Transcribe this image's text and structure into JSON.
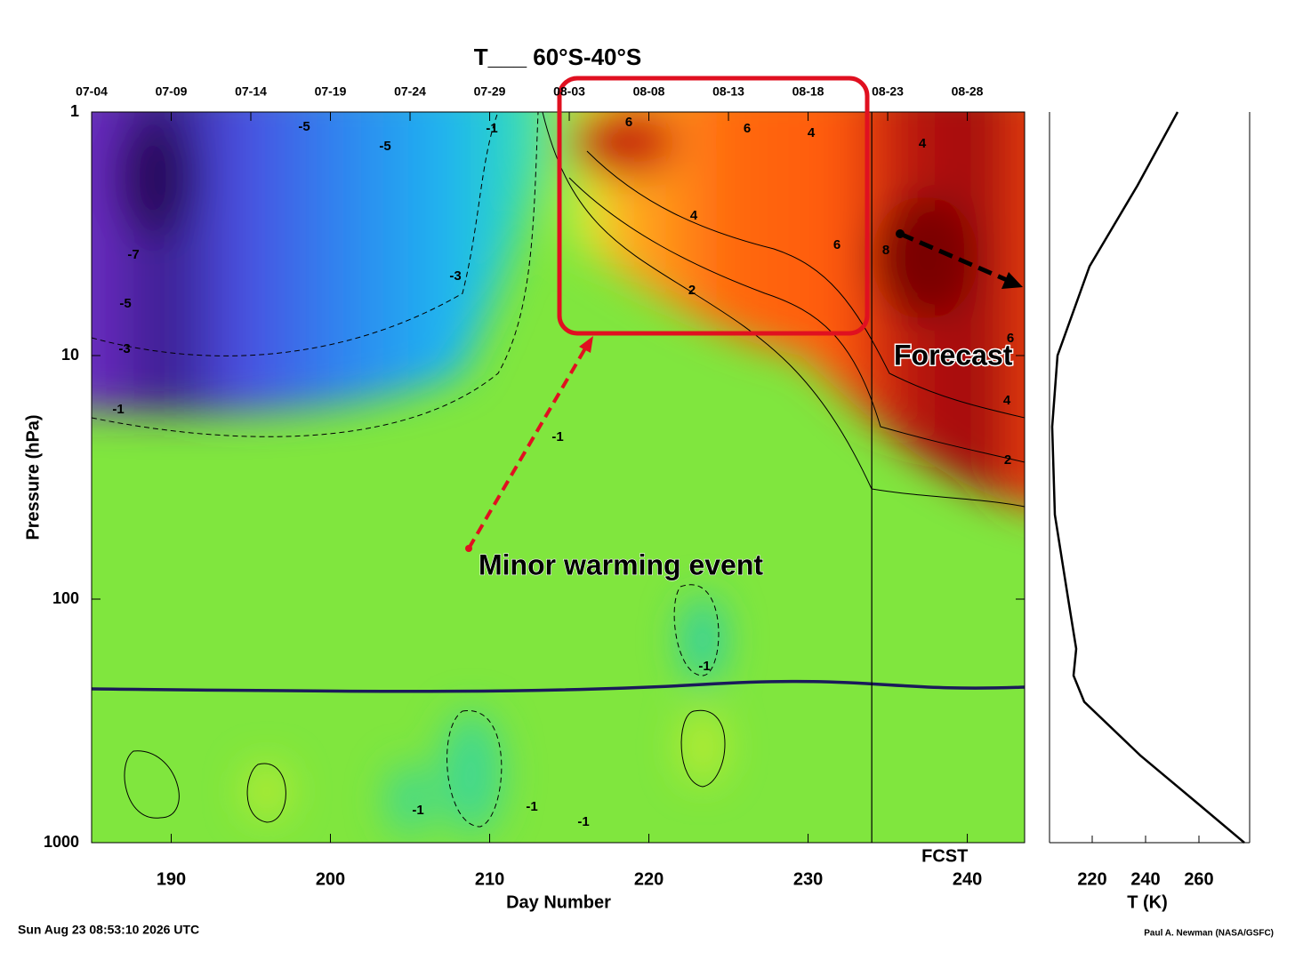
{
  "chart_data": [
    {
      "type": "contour",
      "title": "T___ 60°S-40°S",
      "xlabel": "Day Number",
      "ylabel": "Pressure (hPa)",
      "xlim": [
        185,
        243.6
      ],
      "ylim": [
        1000,
        1
      ],
      "log_y": true,
      "xticks": [
        190,
        200,
        210,
        220,
        230,
        240
      ],
      "yticks": [
        1000,
        100,
        10,
        1
      ],
      "top_xticks": [
        {
          "value": 185,
          "label": "07-04"
        },
        {
          "value": 190,
          "label": "07-09"
        },
        {
          "value": 195,
          "label": "07-14"
        },
        {
          "value": 200,
          "label": "07-19"
        },
        {
          "value": 205,
          "label": "07-24"
        },
        {
          "value": 210,
          "label": "07-29"
        },
        {
          "value": 215,
          "label": "08-03"
        },
        {
          "value": 220,
          "label": "08-08"
        },
        {
          "value": 225,
          "label": "08-13"
        },
        {
          "value": 230,
          "label": "08-18"
        },
        {
          "value": 235,
          "label": "08-23"
        },
        {
          "value": 240,
          "label": "08-28"
        }
      ],
      "contour_labels": [
        -5,
        -5,
        -7,
        -5,
        -3,
        -1,
        -3,
        -1,
        -1,
        6,
        6,
        4,
        4,
        2,
        6,
        8,
        4,
        6,
        4,
        2,
        -1,
        -1,
        -1,
        -1
      ],
      "annotations": [
        {
          "text": "Minor warming event",
          "color": "#e8141c"
        },
        {
          "text": "Forecast",
          "color": "#000000"
        },
        {
          "text": "FCST",
          "x": 234
        }
      ],
      "timestamp": "Sun Aug 23 08:53:10 2026 UTC",
      "credit": "Paul A. Newman (NASA/GSFC)"
    },
    {
      "type": "line",
      "xlabel": "T (K)",
      "xlim": [
        204,
        279
      ],
      "ylim": [
        1000,
        1
      ],
      "log_y": true,
      "xticks": [
        220,
        240,
        260
      ],
      "y": [
        1,
        2,
        4.3,
        10,
        19.6,
        45,
        100,
        160,
        206,
        264,
        438,
        668,
        1000
      ],
      "values": [
        252,
        237,
        219,
        207,
        205,
        206,
        211,
        214,
        213,
        217,
        238,
        258,
        277
      ],
      "color": "#000000"
    }
  ]
}
